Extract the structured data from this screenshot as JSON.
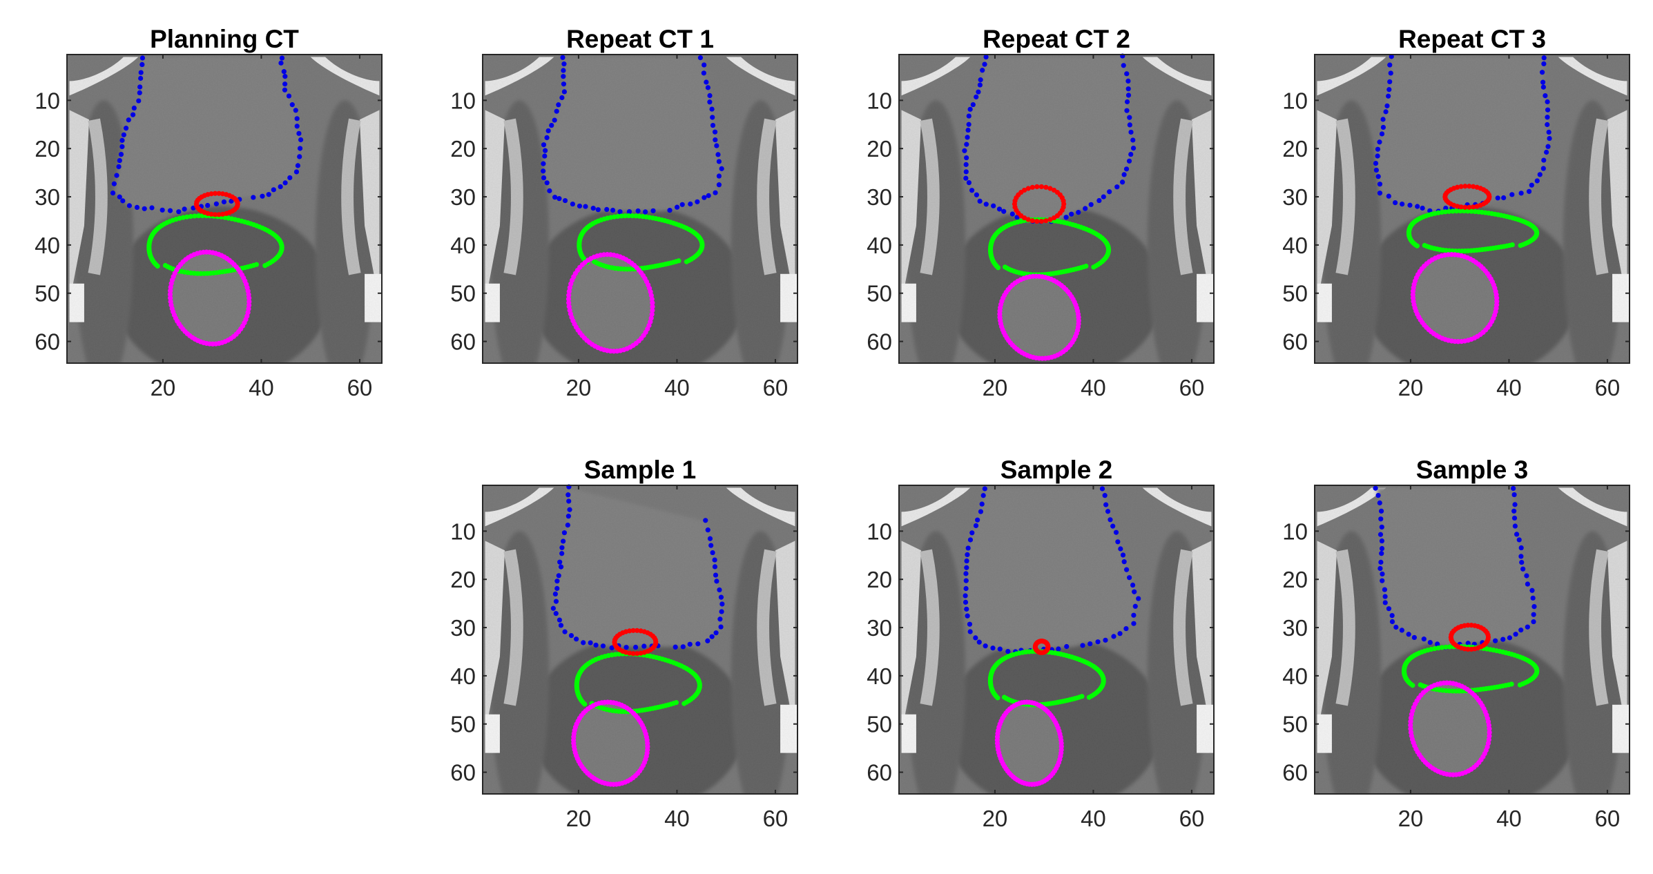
{
  "figure": {
    "panels": [
      {
        "id": "planning-ct",
        "title": "Planning CT",
        "row": 0,
        "col": 0,
        "variant": 0
      },
      {
        "id": "repeat-ct-1",
        "title": "Repeat CT 1",
        "row": 0,
        "col": 1,
        "variant": 1
      },
      {
        "id": "repeat-ct-2",
        "title": "Repeat CT 2",
        "row": 0,
        "col": 2,
        "variant": 2
      },
      {
        "id": "repeat-ct-3",
        "title": "Repeat CT 3",
        "row": 0,
        "col": 3,
        "variant": 3
      },
      {
        "id": "sample-1",
        "title": "Sample 1",
        "row": 1,
        "col": 1,
        "variant": 4
      },
      {
        "id": "sample-2",
        "title": "Sample 2",
        "row": 1,
        "col": 2,
        "variant": 5
      },
      {
        "id": "sample-3",
        "title": "Sample 3",
        "row": 1,
        "col": 3,
        "variant": 6
      }
    ],
    "axes": {
      "xlim": [
        0.5,
        64.5
      ],
      "ylim": [
        0.5,
        64.5
      ],
      "y_direction": "reversed",
      "xticks": [
        "20",
        "40",
        "60"
      ],
      "yticks": [
        "10",
        "20",
        "30",
        "40",
        "50",
        "60"
      ]
    },
    "contour_colors": {
      "bladder": "#0000e6",
      "seminal_vesicles": "#ff0000",
      "prostate": "#00ff00",
      "rectum": "#ff00ff"
    },
    "colormap": "gray"
  }
}
